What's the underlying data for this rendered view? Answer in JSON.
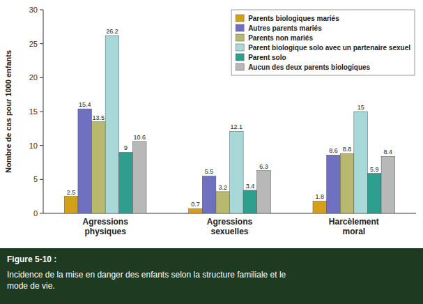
{
  "chart_data": {
    "type": "bar",
    "title": "Figure 5-10 :",
    "subtitle": " Incidence de la mise en danger des enfants selon la structure familiale et le\nmode de vie.",
    "y_label": "Nombre de cas pour 1000 enfants",
    "categories": [
      "Agressions\nphysiques",
      "Agressions\nsexuelles",
      "Harcèlement\nmoral"
    ],
    "series": [
      {
        "name": "Parents biologiques mariés",
        "color": "#D4A017",
        "values": [
          2.5,
          0.7,
          1.8
        ]
      },
      {
        "name": "Autres parents mariés",
        "color": "#7070C0",
        "values": [
          15.4,
          5.5,
          8.6
        ]
      },
      {
        "name": "Parents non mariés",
        "color": "#B8B870",
        "values": [
          13.5,
          3.2,
          8.8
        ]
      },
      {
        "name": "Parent biologique solo avec un partenaire sexuel",
        "color": "#A8D8D8",
        "values": [
          26.2,
          12.1,
          15.0
        ]
      },
      {
        "name": "Parent solo",
        "color": "#2E9E8E",
        "values": [
          9.0,
          3.4,
          5.9
        ]
      },
      {
        "name": "Aucun des deux parents biologiques",
        "color": "#B8B8B8",
        "values": [
          10.6,
          6.3,
          8.4
        ]
      }
    ],
    "ylim": [
      0,
      30
    ],
    "yticks": [
      0,
      5,
      10,
      15,
      20,
      25,
      30
    ],
    "grid": false,
    "legend": "upper right",
    "data_labels": true
  }
}
